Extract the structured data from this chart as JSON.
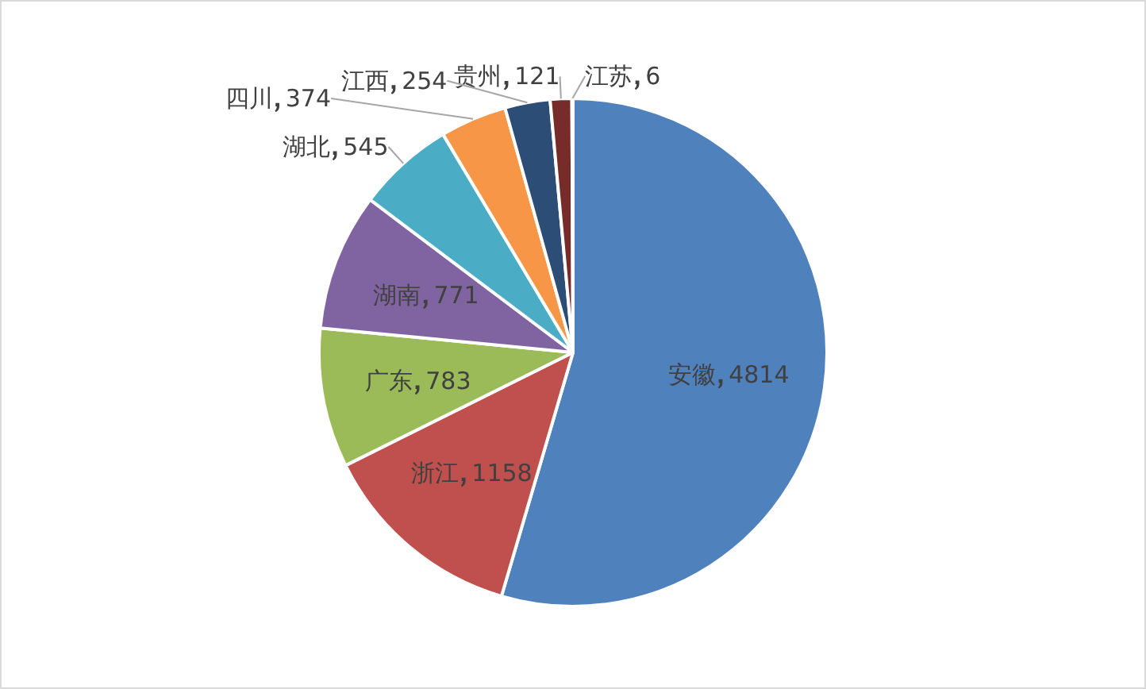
{
  "chart_data": {
    "type": "pie",
    "data_labels": true,
    "categories": [
      "安徽",
      "浙江",
      "广东",
      "湖南",
      "湖北",
      "四川",
      "江西",
      "贵州",
      "江苏"
    ],
    "values": [
      4814,
      1158,
      783,
      771,
      545,
      374,
      254,
      121,
      6
    ],
    "colors": [
      "#4f81bd",
      "#c0504d",
      "#9bbb59",
      "#8064a2",
      "#4bacc6",
      "#f79646",
      "#2c4d75",
      "#772c2a",
      "#5f7530"
    ]
  }
}
